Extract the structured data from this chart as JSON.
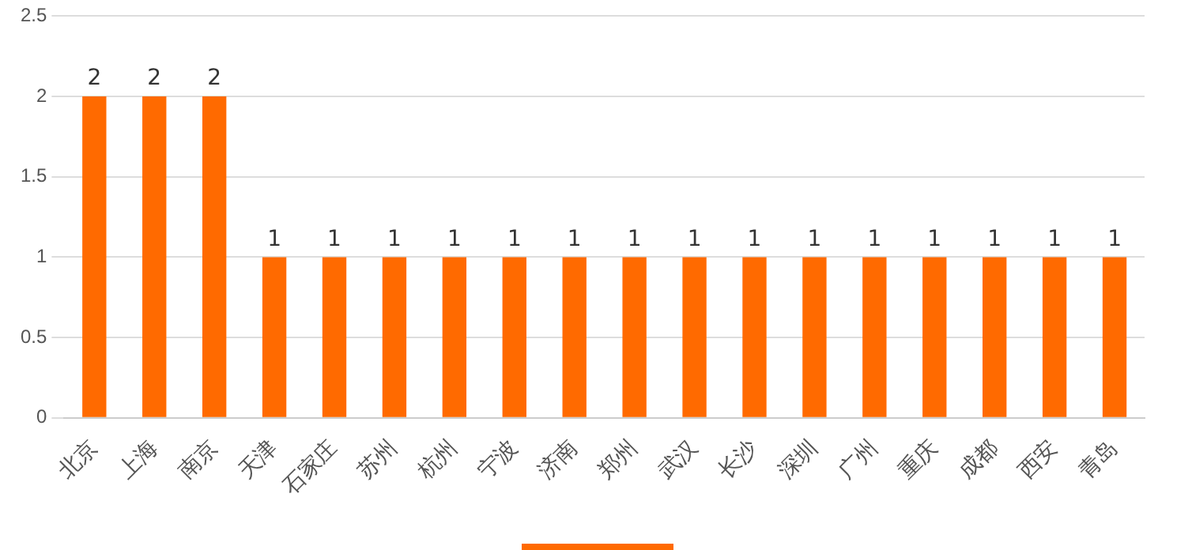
{
  "chart_data": {
    "type": "bar",
    "categories": [
      "北京",
      "上海",
      "南京",
      "天津",
      "石家庄",
      "苏州",
      "杭州",
      "宁波",
      "济南",
      "郑州",
      "武汉",
      "长沙",
      "深圳",
      "广州",
      "重庆",
      "成都",
      "西安",
      "青岛"
    ],
    "values": [
      2,
      2,
      2,
      1,
      1,
      1,
      1,
      1,
      1,
      1,
      1,
      1,
      1,
      1,
      1,
      1,
      1,
      1
    ],
    "color": "#ff6a00",
    "ylim": [
      0,
      2.5
    ],
    "yticks": [
      0,
      0.5,
      1,
      1.5,
      2,
      2.5
    ],
    "grid": "y",
    "data_labels": true
  }
}
